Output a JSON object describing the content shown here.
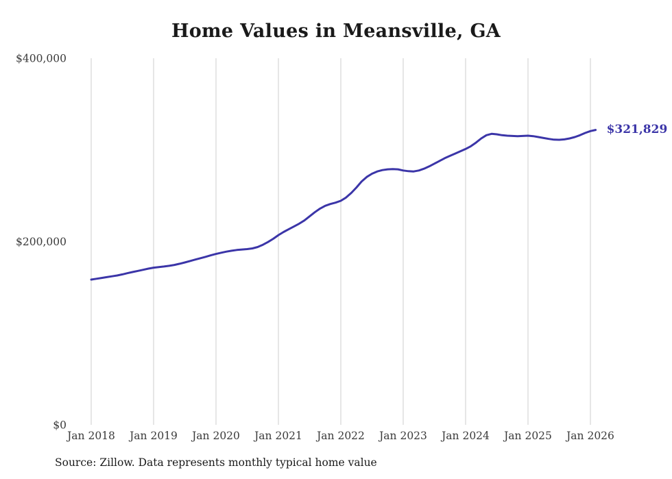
{
  "chart_data": {
    "type": "line",
    "title": "Home Values in Meansville, GA",
    "source_note": "Source: Zillow. Data represents monthly typical home value",
    "end_label": "$321,829",
    "end_value": 321829,
    "line_color": "#3b35a8",
    "grid_color": "#cccccc",
    "tick_color": "#3a3a3a",
    "ylim": [
      0,
      400000
    ],
    "grid": "vertical-only",
    "legend": "none",
    "x_start": "Jan 2018",
    "x_interval": "monthly",
    "x_tick_labels": [
      "Jan 2018",
      "Jan 2019",
      "Jan 2020",
      "Jan 2021",
      "Jan 2022",
      "Jan 2023",
      "Jan 2024",
      "Jan 2025",
      "Jan 2026"
    ],
    "y_ticks": [
      {
        "label": "$0",
        "value": 0
      },
      {
        "label": "$200,000",
        "value": 200000
      },
      {
        "label": "$400,000",
        "value": 400000
      }
    ],
    "values": [
      158500,
      159400,
      160300,
      161200,
      162100,
      163000,
      164200,
      165500,
      166800,
      168000,
      169200,
      170500,
      171500,
      172200,
      172800,
      173500,
      174500,
      175800,
      177200,
      178800,
      180300,
      181800,
      183300,
      185000,
      186500,
      187800,
      189000,
      190000,
      190800,
      191300,
      191800,
      192500,
      194000,
      196500,
      199500,
      203000,
      207000,
      210500,
      213500,
      216500,
      219500,
      223000,
      227500,
      232000,
      236000,
      239000,
      241000,
      242500,
      244500,
      248000,
      253000,
      259000,
      265500,
      270500,
      274000,
      276500,
      278000,
      278800,
      279000,
      278800,
      277500,
      276800,
      276500,
      277500,
      279500,
      282000,
      285000,
      288000,
      291000,
      293500,
      296000,
      298500,
      301000,
      304000,
      308000,
      312500,
      316000,
      317500,
      317000,
      316000,
      315500,
      315200,
      315000,
      315200,
      315500,
      315000,
      314000,
      313000,
      312000,
      311200,
      311000,
      311500,
      312500,
      314000,
      316000,
      318500,
      320500,
      321829
    ]
  }
}
